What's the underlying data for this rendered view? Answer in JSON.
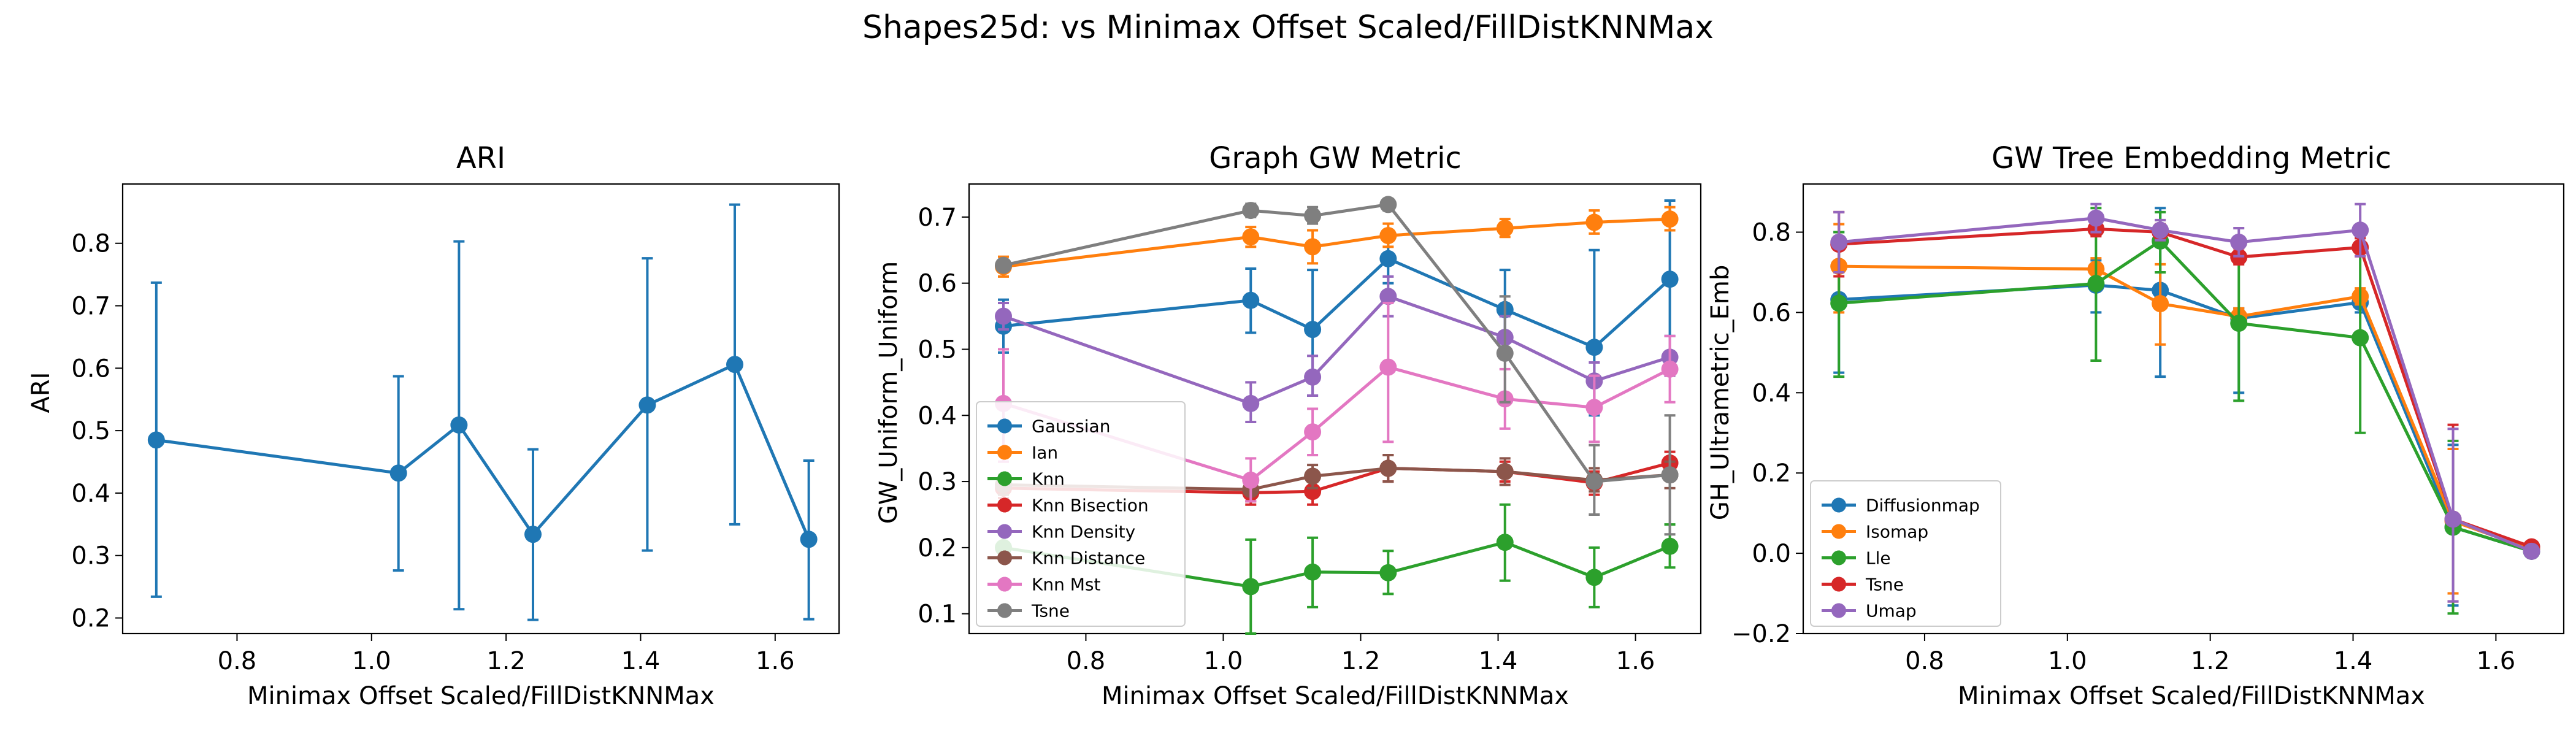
{
  "suptitle": "Shapes25d: vs Minimax Offset Scaled/FillDistKNNMax",
  "colors": {
    "c0": "#1f77b4",
    "c1": "#ff7f0e",
    "c2": "#2ca02c",
    "c3": "#d62728",
    "c4": "#9467bd",
    "c5": "#8c564b",
    "c6": "#e377c2",
    "c7": "#7f7f7f"
  },
  "chart_data": [
    {
      "type": "line",
      "title": "ARI",
      "xlabel": "Minimax Offset Scaled/FillDistKNNMax",
      "ylabel": "ARI",
      "xlim": [
        0.63,
        1.695
      ],
      "ylim": [
        0.175,
        0.895
      ],
      "xticks": [
        0.8,
        1.0,
        1.2,
        1.4,
        1.6
      ],
      "xtick_labels": [
        "0.8",
        "1.0",
        "1.2",
        "1.4",
        "1.6"
      ],
      "yticks": [
        0.2,
        0.3,
        0.4,
        0.5,
        0.6,
        0.7,
        0.8
      ],
      "ytick_labels": [
        "0.2",
        "0.3",
        "0.4",
        "0.5",
        "0.6",
        "0.7",
        "0.8"
      ],
      "legend": "none",
      "grid": false,
      "x": [
        0.68,
        1.04,
        1.13,
        1.24,
        1.41,
        1.54,
        1.65
      ],
      "series": [
        {
          "name": "",
          "color": "#1f77b4",
          "values": [
            0.485,
            0.432,
            0.509,
            0.334,
            0.541,
            0.606,
            0.326
          ],
          "err_low": [
            0.234,
            0.276,
            0.214,
            0.197,
            0.308,
            0.35,
            0.198
          ],
          "err_high": [
            0.737,
            0.587,
            0.803,
            0.47,
            0.776,
            0.862,
            0.452
          ]
        }
      ]
    },
    {
      "type": "line",
      "title": "Graph GW Metric",
      "xlabel": "Minimax Offset Scaled/FillDistKNNMax",
      "ylabel": "GW_Uniform_Uniform",
      "xlim": [
        0.63,
        1.695
      ],
      "ylim": [
        0.07,
        0.75
      ],
      "xticks": [
        0.8,
        1.0,
        1.2,
        1.4,
        1.6
      ],
      "xtick_labels": [
        "0.8",
        "1.0",
        "1.2",
        "1.4",
        "1.6"
      ],
      "yticks": [
        0.1,
        0.2,
        0.3,
        0.4,
        0.5,
        0.6,
        0.7
      ],
      "ytick_labels": [
        "0.1",
        "0.2",
        "0.3",
        "0.4",
        "0.5",
        "0.6",
        "0.7"
      ],
      "legend": "lower-left",
      "grid": false,
      "x": [
        0.68,
        1.04,
        1.13,
        1.24,
        1.41,
        1.54,
        1.65
      ],
      "series": [
        {
          "name": "Gaussian",
          "color": "#1f77b4",
          "values": [
            0.535,
            0.574,
            0.53,
            0.637,
            0.56,
            0.503,
            0.606
          ],
          "err_low": [
            0.495,
            0.525,
            0.43,
            0.6,
            0.49,
            0.4,
            0.52
          ],
          "err_high": [
            0.575,
            0.622,
            0.62,
            0.675,
            0.62,
            0.65,
            0.725
          ]
        },
        {
          "name": "Ian",
          "color": "#ff7f0e",
          "values": [
            0.625,
            0.67,
            0.655,
            0.672,
            0.683,
            0.692,
            0.697
          ],
          "err_low": [
            0.61,
            0.655,
            0.63,
            0.655,
            0.67,
            0.675,
            0.68
          ],
          "err_high": [
            0.64,
            0.685,
            0.68,
            0.69,
            0.697,
            0.71,
            0.715
          ]
        },
        {
          "name": "Knn",
          "color": "#2ca02c",
          "values": [
            0.2,
            0.141,
            0.163,
            0.162,
            0.208,
            0.155,
            0.202
          ],
          "err_low": [
            0.18,
            0.07,
            0.11,
            0.13,
            0.15,
            0.11,
            0.17
          ],
          "err_high": [
            0.22,
            0.212,
            0.215,
            0.195,
            0.265,
            0.2,
            0.235
          ]
        },
        {
          "name": "Knn Bisection",
          "color": "#d62728",
          "values": [
            0.29,
            0.283,
            0.285,
            0.32,
            0.315,
            0.298,
            0.328
          ],
          "err_low": [
            0.275,
            0.265,
            0.265,
            0.3,
            0.3,
            0.28,
            0.31
          ],
          "err_high": [
            0.305,
            0.3,
            0.305,
            0.34,
            0.33,
            0.315,
            0.345
          ]
        },
        {
          "name": "Knn Density",
          "color": "#9467bd",
          "values": [
            0.55,
            0.418,
            0.458,
            0.58,
            0.518,
            0.452,
            0.488
          ],
          "err_low": [
            0.53,
            0.39,
            0.43,
            0.55,
            0.49,
            0.42,
            0.46
          ],
          "err_high": [
            0.57,
            0.45,
            0.49,
            0.61,
            0.55,
            0.48,
            0.52
          ]
        },
        {
          "name": "Knn Distance",
          "color": "#8c564b",
          "values": [
            0.295,
            0.288,
            0.308,
            0.32,
            0.315,
            0.302,
            0.31
          ],
          "err_low": [
            0.28,
            0.27,
            0.29,
            0.3,
            0.295,
            0.285,
            0.29
          ],
          "err_high": [
            0.31,
            0.305,
            0.325,
            0.34,
            0.335,
            0.32,
            0.33
          ]
        },
        {
          "name": "Knn Mst",
          "color": "#e377c2",
          "values": [
            0.418,
            0.302,
            0.375,
            0.473,
            0.425,
            0.412,
            0.47
          ],
          "err_low": [
            0.33,
            0.27,
            0.34,
            0.36,
            0.38,
            0.36,
            0.42
          ],
          "err_high": [
            0.5,
            0.335,
            0.41,
            0.57,
            0.47,
            0.46,
            0.52
          ]
        },
        {
          "name": "Tsne",
          "color": "#7f7f7f",
          "values": [
            0.627,
            0.71,
            0.702,
            0.719,
            0.494,
            0.3,
            0.31
          ],
          "err_low": [
            0.62,
            0.7,
            0.69,
            0.71,
            0.42,
            0.25,
            0.22
          ],
          "err_high": [
            0.635,
            0.72,
            0.715,
            0.727,
            0.58,
            0.355,
            0.4
          ]
        }
      ]
    },
    {
      "type": "line",
      "title": "GW Tree Embedding Metric",
      "xlabel": "Minimax Offset Scaled/FillDistKNNMax",
      "ylabel": "GH_Ultrametric_Emb",
      "xlim": [
        0.63,
        1.695
      ],
      "ylim": [
        -0.2,
        0.92
      ],
      "xticks": [
        0.8,
        1.0,
        1.2,
        1.4,
        1.6
      ],
      "xtick_labels": [
        "0.8",
        "1.0",
        "1.2",
        "1.4",
        "1.6"
      ],
      "yticks": [
        -0.2,
        0.0,
        0.2,
        0.4,
        0.6,
        0.8
      ],
      "ytick_labels": [
        "−0.2",
        "0.0",
        "0.2",
        "0.4",
        "0.6",
        "0.8"
      ],
      "legend": "lower-left",
      "grid": false,
      "x": [
        0.68,
        1.04,
        1.13,
        1.24,
        1.41,
        1.54,
        1.65
      ],
      "series": [
        {
          "name": "Diffusionmap",
          "color": "#1f77b4",
          "values": [
            0.632,
            0.668,
            0.655,
            0.585,
            0.625,
            0.065,
            0.005
          ],
          "err_low": [
            0.45,
            0.6,
            0.44,
            0.4,
            0.6,
            -0.13,
            0.0
          ],
          "err_high": [
            0.8,
            0.73,
            0.86,
            0.61,
            0.65,
            0.27,
            0.01
          ]
        },
        {
          "name": "Isomap",
          "color": "#ff7f0e",
          "values": [
            0.715,
            0.708,
            0.622,
            0.59,
            0.64,
            0.08,
            0.01
          ],
          "err_low": [
            0.6,
            0.68,
            0.52,
            0.57,
            0.62,
            -0.1,
            0.0
          ],
          "err_high": [
            0.82,
            0.735,
            0.72,
            0.61,
            0.66,
            0.26,
            0.02
          ]
        },
        {
          "name": "Lle",
          "color": "#2ca02c",
          "values": [
            0.623,
            0.672,
            0.778,
            0.573,
            0.537,
            0.065,
            0.005
          ],
          "err_low": [
            0.44,
            0.48,
            0.7,
            0.38,
            0.3,
            -0.15,
            0.0
          ],
          "err_high": [
            0.8,
            0.86,
            0.85,
            0.77,
            0.77,
            0.28,
            0.01
          ]
        },
        {
          "name": "Tsne",
          "color": "#d62728",
          "values": [
            0.77,
            0.808,
            0.8,
            0.738,
            0.762,
            0.085,
            0.016
          ],
          "err_low": [
            0.69,
            0.79,
            0.78,
            0.72,
            0.74,
            -0.12,
            0.01
          ],
          "err_high": [
            0.85,
            0.83,
            0.82,
            0.76,
            0.785,
            0.32,
            0.022
          ]
        },
        {
          "name": "Umap",
          "color": "#9467bd",
          "values": [
            0.775,
            0.835,
            0.805,
            0.775,
            0.805,
            0.085,
            0.005
          ],
          "err_low": [
            0.7,
            0.8,
            0.78,
            0.74,
            0.74,
            -0.12,
            0.0
          ],
          "err_high": [
            0.85,
            0.87,
            0.83,
            0.81,
            0.87,
            0.31,
            0.01
          ]
        }
      ]
    }
  ]
}
